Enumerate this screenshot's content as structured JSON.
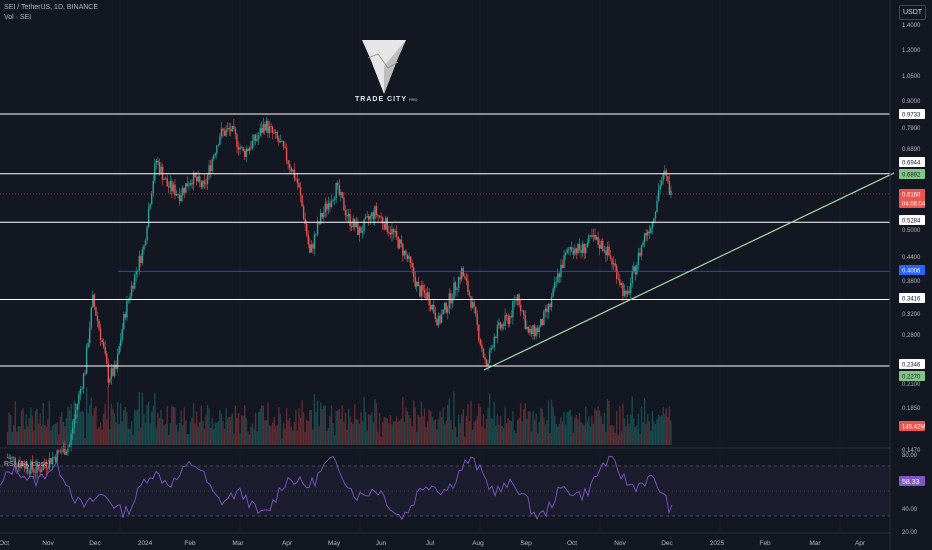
{
  "header": {
    "symbol_line": "SEI / TetherUS, 1D, BINANCE",
    "volume_line": "Vol · SEI",
    "currency_button": "USDT"
  },
  "rsi": {
    "title": "RSI (14, close)",
    "value": "58.33",
    "levels": [
      "80.00",
      "40.00",
      "20.00"
    ]
  },
  "watermark": {
    "brand": "TRADE CITY",
    "suffix": "PRO"
  },
  "price_axis": {
    "ticks": [
      "1.6000",
      "1.4000",
      "1.2000",
      "1.0500",
      "0.9000",
      "0.7900",
      "0.6890",
      "0.5000",
      "0.4400",
      "0.3800",
      "0.3200",
      "0.2800",
      "0.2100",
      "0.1850",
      "0.1470"
    ],
    "labels": [
      {
        "text": "0.9733",
        "style": "white"
      },
      {
        "text": "0.6944",
        "style": "white"
      },
      {
        "text": "0.6892",
        "style": "green"
      },
      {
        "text": "0.6160",
        "style": "red"
      },
      {
        "text": "04:06:04",
        "style": "red"
      },
      {
        "text": "0.5284",
        "style": "white"
      },
      {
        "text": "0.4006",
        "style": "blue"
      },
      {
        "text": "0.3416",
        "style": "white"
      },
      {
        "text": "0.2346",
        "style": "white"
      },
      {
        "text": "0.2270",
        "style": "green"
      },
      {
        "text": "145.42M",
        "style": "red"
      }
    ]
  },
  "time_axis": [
    "Oct",
    "Nov",
    "Dec",
    "2024",
    "Feb",
    "Mar",
    "Apr",
    "May",
    "Jun",
    "Jul",
    "Aug",
    "Sep",
    "Oct",
    "Nov",
    "Dec",
    "2025",
    "Feb",
    "Mar",
    "Apr"
  ],
  "colors": {
    "background": "#131722",
    "up": "#26a69a",
    "down": "#ef5350",
    "level": "#ffffff",
    "blue_level": "#2962ff",
    "trendline": "#a5d6a7",
    "rsi": "#7e57c2"
  },
  "chart_data": {
    "type": "candlestick",
    "symbol": "SEI/USDT",
    "timeframe": "1D",
    "horizontal_levels": [
      0.9733,
      0.6944,
      0.5284,
      0.4006,
      0.3416,
      0.2346
    ],
    "trendline": [
      {
        "x": "2024-08",
        "y": 0.227
      },
      {
        "x": "2024-12",
        "y": 0.689
      }
    ],
    "last_price": 0.616,
    "volume_last": "145.42M",
    "rsi_last": 58.33,
    "price_path": [
      {
        "x": "2023-10-01",
        "y": 0.14
      },
      {
        "x": "2023-10-20",
        "y": 0.13
      },
      {
        "x": "2023-11-10",
        "y": 0.15
      },
      {
        "x": "2023-11-20",
        "y": 0.23
      },
      {
        "x": "2023-11-25",
        "y": 0.34
      },
      {
        "x": "2023-12-05",
        "y": 0.22
      },
      {
        "x": "2023-12-10",
        "y": 0.23
      },
      {
        "x": "2023-12-16",
        "y": 0.32
      },
      {
        "x": "2023-12-22",
        "y": 0.39
      },
      {
        "x": "2023-12-28",
        "y": 0.46
      },
      {
        "x": "2024-01-05",
        "y": 0.75
      },
      {
        "x": "2024-01-12",
        "y": 0.65
      },
      {
        "x": "2024-01-20",
        "y": 0.62
      },
      {
        "x": "2024-01-28",
        "y": 0.68
      },
      {
        "x": "2024-02-05",
        "y": 0.64
      },
      {
        "x": "2024-02-15",
        "y": 0.87
      },
      {
        "x": "2024-02-22",
        "y": 0.89
      },
      {
        "x": "2024-03-01",
        "y": 0.78
      },
      {
        "x": "2024-03-10",
        "y": 0.85
      },
      {
        "x": "2024-03-15",
        "y": 0.92
      },
      {
        "x": "2024-03-25",
        "y": 0.82
      },
      {
        "x": "2024-04-05",
        "y": 0.66
      },
      {
        "x": "2024-04-13",
        "y": 0.44
      },
      {
        "x": "2024-04-20",
        "y": 0.54
      },
      {
        "x": "2024-04-30",
        "y": 0.64
      },
      {
        "x": "2024-05-08",
        "y": 0.54
      },
      {
        "x": "2024-05-15",
        "y": 0.5
      },
      {
        "x": "2024-05-25",
        "y": 0.56
      },
      {
        "x": "2024-06-05",
        "y": 0.5
      },
      {
        "x": "2024-06-15",
        "y": 0.43
      },
      {
        "x": "2024-06-22",
        "y": 0.36
      },
      {
        "x": "2024-06-28",
        "y": 0.35
      },
      {
        "x": "2024-07-05",
        "y": 0.3
      },
      {
        "x": "2024-07-12",
        "y": 0.34
      },
      {
        "x": "2024-07-20",
        "y": 0.4
      },
      {
        "x": "2024-07-25",
        "y": 0.35
      },
      {
        "x": "2024-08-01",
        "y": 0.27
      },
      {
        "x": "2024-08-05",
        "y": 0.23
      },
      {
        "x": "2024-08-10",
        "y": 0.28
      },
      {
        "x": "2024-08-20",
        "y": 0.31
      },
      {
        "x": "2024-08-25",
        "y": 0.35
      },
      {
        "x": "2024-09-01",
        "y": 0.28
      },
      {
        "x": "2024-09-08",
        "y": 0.29
      },
      {
        "x": "2024-09-15",
        "y": 0.33
      },
      {
        "x": "2024-09-22",
        "y": 0.41
      },
      {
        "x": "2024-09-28",
        "y": 0.46
      },
      {
        "x": "2024-10-05",
        "y": 0.45
      },
      {
        "x": "2024-10-12",
        "y": 0.48
      },
      {
        "x": "2024-10-20",
        "y": 0.46
      },
      {
        "x": "2024-10-28",
        "y": 0.4
      },
      {
        "x": "2024-11-03",
        "y": 0.34
      },
      {
        "x": "2024-11-10",
        "y": 0.42
      },
      {
        "x": "2024-11-15",
        "y": 0.49
      },
      {
        "x": "2024-11-20",
        "y": 0.53
      },
      {
        "x": "2024-11-25",
        "y": 0.66
      },
      {
        "x": "2024-11-28",
        "y": 0.69
      },
      {
        "x": "2024-12-02",
        "y": 0.616
      }
    ]
  }
}
